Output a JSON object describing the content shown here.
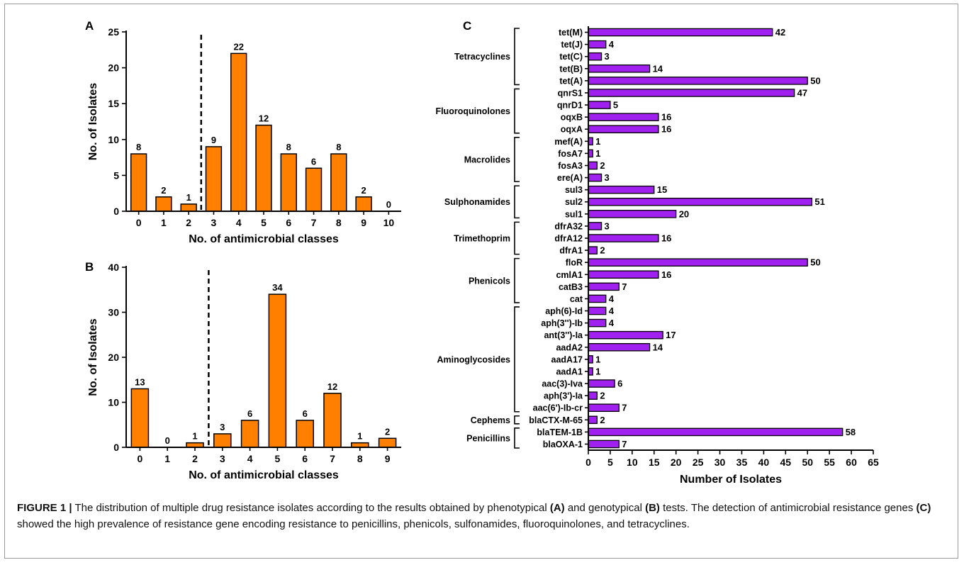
{
  "caption": {
    "label": "FIGURE 1 |",
    "t1": " The distribution of multiple drug resistance isolates according to the results obtained by phenotypical ",
    "b1": "(A)",
    "t2": " and genotypical ",
    "b2": "(B)",
    "t3": " tests. The detection of antimicrobial resistance genes ",
    "b3": "(C)",
    "t4": " showed the high prevalence of resistance gene encoding resistance to penicillins, phenicols, sulfonamides, fluoroquinolones, and tetracyclines."
  },
  "colors": {
    "panel_ab_bar": "#ff8000",
    "panel_c_bar": "#a020f0",
    "stroke": "#000000"
  },
  "chart_data": [
    {
      "panel": "A",
      "type": "bar",
      "categories": [
        "0",
        "1",
        "2",
        "3",
        "4",
        "5",
        "6",
        "7",
        "8",
        "9",
        "10"
      ],
      "values": [
        8,
        2,
        1,
        9,
        22,
        12,
        8,
        6,
        8,
        2,
        0
      ],
      "xlabel": "No. of antimicrobial classes",
      "ylabel": "No. of Isolates",
      "ylim": [
        0,
        25
      ],
      "yticks": [
        0,
        5,
        10,
        15,
        20,
        25
      ],
      "dashed_divider_after_category": "2"
    },
    {
      "panel": "B",
      "type": "bar",
      "categories": [
        "0",
        "1",
        "2",
        "3",
        "4",
        "5",
        "6",
        "7",
        "8",
        "9"
      ],
      "values": [
        13,
        0,
        1,
        3,
        6,
        34,
        6,
        12,
        1,
        2
      ],
      "xlabel": "No. of antimicrobial classes",
      "ylabel": "No. of Isolates",
      "ylim": [
        0,
        40
      ],
      "yticks": [
        0,
        10,
        20,
        30,
        40
      ],
      "dashed_divider_after_category": "2"
    },
    {
      "panel": "C",
      "type": "bar",
      "orientation": "horizontal",
      "xlabel": "Number of Isolates",
      "xlim": [
        0,
        65
      ],
      "xticks": [
        0,
        5,
        10,
        15,
        20,
        25,
        30,
        35,
        40,
        45,
        50,
        55,
        60,
        65
      ],
      "genes": [
        "tet(M)",
        "tet(J)",
        "tet(C)",
        "tet(B)",
        "tet(A)",
        "qnrS1",
        "qnrD1",
        "oqxB",
        "oqxA",
        "mef(A)",
        "fosA7",
        "fosA3",
        "ere(A)",
        "sul3",
        "sul2",
        "sul1",
        "dfrA32",
        "dfrA12",
        "dfrA1",
        "floR",
        "cmlA1",
        "catB3",
        "cat",
        "aph(6)-Id",
        "aph(3'')-Ib",
        "ant(3'')-Ia",
        "aadA2",
        "aadA17",
        "aadA1",
        "aac(3)-Iva",
        "aph(3')-Ia",
        "aac(6')-Ib-cr",
        "blaCTX-M-65",
        "blaTEM-1B",
        "blaOXA-1"
      ],
      "values": [
        42,
        4,
        3,
        14,
        50,
        47,
        5,
        16,
        16,
        1,
        1,
        2,
        3,
        15,
        51,
        20,
        3,
        16,
        2,
        50,
        16,
        7,
        4,
        4,
        4,
        17,
        14,
        1,
        1,
        6,
        2,
        7,
        2,
        58,
        7
      ],
      "groups": [
        {
          "name": "Tetracyclines",
          "start": 0,
          "end": 4
        },
        {
          "name": "Fluoroquinolones",
          "start": 5,
          "end": 8
        },
        {
          "name": "Macrolides",
          "start": 9,
          "end": 12
        },
        {
          "name": "Sulphonamides",
          "start": 13,
          "end": 15
        },
        {
          "name": "Trimethoprim",
          "start": 16,
          "end": 18
        },
        {
          "name": "Phenicols",
          "start": 19,
          "end": 22
        },
        {
          "name": "Aminoglycosides",
          "start": 23,
          "end": 31
        },
        {
          "name": "Cephems",
          "start": 32,
          "end": 32
        },
        {
          "name": "Penicillins",
          "start": 33,
          "end": 34
        }
      ]
    }
  ]
}
